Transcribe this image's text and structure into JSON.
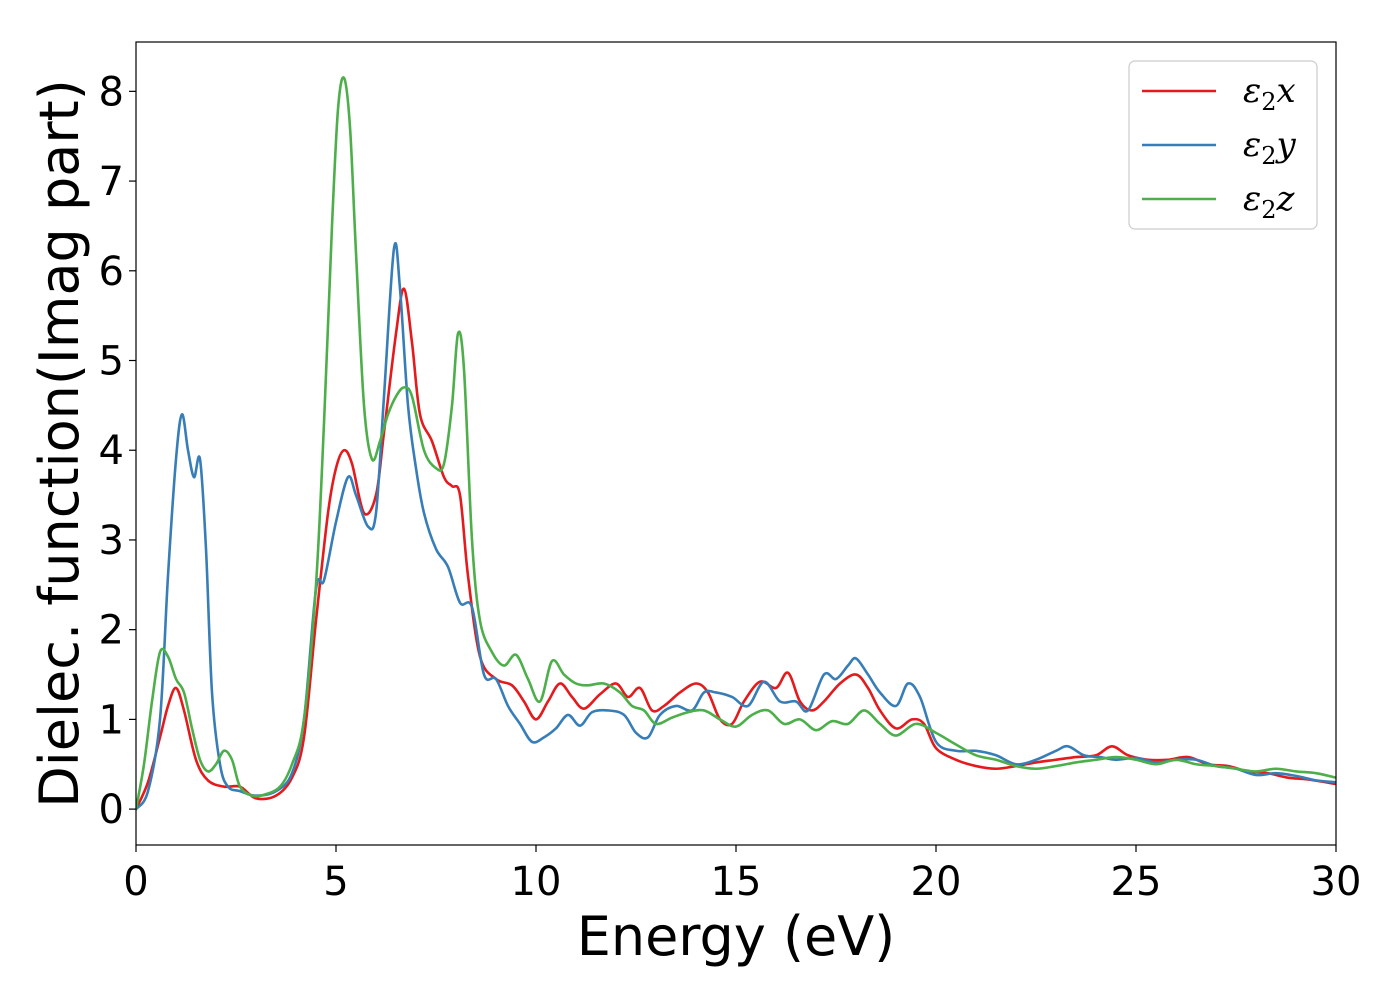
{
  "chart_data": {
    "type": "line",
    "xlabel": "Energy (eV)",
    "ylabel": "Dielec. function(Imag part)",
    "xlim": [
      0,
      30
    ],
    "ylim": [
      -0.4,
      8.55
    ],
    "xticks": [
      "0",
      "5",
      "10",
      "15",
      "20",
      "25",
      "30"
    ],
    "yticks": [
      "0",
      "1",
      "2",
      "3",
      "4",
      "5",
      "6",
      "7",
      "8"
    ],
    "grid": false,
    "legend_position": "top-right",
    "series": [
      {
        "name": "ε2x",
        "legend_base": "ε",
        "legend_sub": "2",
        "legend_tail": "x",
        "color": "#e41a1c",
        "x": [
          0,
          0.3,
          0.6,
          0.8,
          1.0,
          1.2,
          1.5,
          1.8,
          2.2,
          2.6,
          3.0,
          3.5,
          3.9,
          4.2,
          4.5,
          4.8,
          5.0,
          5.2,
          5.4,
          5.7,
          6.0,
          6.2,
          6.5,
          6.7,
          6.9,
          7.1,
          7.4,
          7.7,
          7.9,
          8.1,
          8.3,
          8.6,
          9.0,
          9.4,
          9.7,
          10.0,
          10.3,
          10.6,
          10.9,
          11.2,
          11.6,
          12.0,
          12.3,
          12.6,
          12.9,
          13.2,
          13.6,
          14.0,
          14.3,
          14.6,
          14.9,
          15.2,
          15.6,
          16.0,
          16.3,
          16.6,
          16.9,
          17.2,
          17.6,
          18.0,
          18.3,
          18.6,
          19.0,
          19.4,
          19.7,
          20.0,
          20.5,
          21.0,
          21.5,
          22.0,
          22.5,
          23.0,
          23.5,
          24.0,
          24.4,
          24.8,
          25.3,
          25.8,
          26.3,
          26.8,
          27.3,
          27.8,
          28.3,
          28.8,
          29.3,
          30.0
        ],
        "y": [
          0,
          0.3,
          0.8,
          1.15,
          1.35,
          1.1,
          0.55,
          0.32,
          0.25,
          0.25,
          0.12,
          0.15,
          0.35,
          0.8,
          2.1,
          3.3,
          3.8,
          4.0,
          3.85,
          3.3,
          3.5,
          4.2,
          5.3,
          5.8,
          5.2,
          4.4,
          4.1,
          3.7,
          3.6,
          3.5,
          2.6,
          1.7,
          1.45,
          1.38,
          1.2,
          1.0,
          1.2,
          1.4,
          1.25,
          1.12,
          1.28,
          1.4,
          1.25,
          1.35,
          1.1,
          1.15,
          1.3,
          1.4,
          1.3,
          1.0,
          0.95,
          1.2,
          1.42,
          1.35,
          1.52,
          1.2,
          1.1,
          1.2,
          1.4,
          1.5,
          1.35,
          1.1,
          0.9,
          1.0,
          0.95,
          0.68,
          0.55,
          0.48,
          0.45,
          0.48,
          0.52,
          0.55,
          0.58,
          0.6,
          0.7,
          0.6,
          0.55,
          0.55,
          0.58,
          0.5,
          0.48,
          0.42,
          0.4,
          0.35,
          0.33,
          0.28
        ]
      },
      {
        "name": "ε2y",
        "legend_base": "ε",
        "legend_sub": "2",
        "legend_tail": "y",
        "color": "#377eb8",
        "x": [
          0,
          0.3,
          0.6,
          0.8,
          1.0,
          1.15,
          1.3,
          1.45,
          1.6,
          1.75,
          1.9,
          2.1,
          2.3,
          2.6,
          3.0,
          3.5,
          3.9,
          4.2,
          4.5,
          4.7,
          5.0,
          5.3,
          5.5,
          5.8,
          6.0,
          6.2,
          6.45,
          6.6,
          6.8,
          7.0,
          7.2,
          7.5,
          7.8,
          8.1,
          8.4,
          8.7,
          9.0,
          9.3,
          9.6,
          9.9,
          10.2,
          10.5,
          10.8,
          11.1,
          11.4,
          11.8,
          12.2,
          12.5,
          12.8,
          13.1,
          13.5,
          13.9,
          14.2,
          14.5,
          14.9,
          15.3,
          15.7,
          16.1,
          16.5,
          16.8,
          17.2,
          17.5,
          17.8,
          18.0,
          18.3,
          18.6,
          19.0,
          19.3,
          19.6,
          20.0,
          20.5,
          21.0,
          21.5,
          22.0,
          22.5,
          23.0,
          23.3,
          23.7,
          24.1,
          24.5,
          25.0,
          25.5,
          26.0,
          26.5,
          27.0,
          27.5,
          28.0,
          28.5,
          29.0,
          29.5,
          30.0
        ],
        "y": [
          0,
          0.2,
          1.0,
          2.6,
          3.9,
          4.4,
          4.0,
          3.7,
          3.9,
          2.9,
          1.3,
          0.5,
          0.25,
          0.2,
          0.15,
          0.2,
          0.4,
          1.0,
          2.45,
          2.55,
          3.2,
          3.7,
          3.5,
          3.15,
          3.3,
          4.6,
          6.25,
          5.8,
          4.5,
          3.8,
          3.3,
          2.9,
          2.7,
          2.3,
          2.25,
          1.5,
          1.45,
          1.15,
          0.95,
          0.75,
          0.8,
          0.9,
          1.05,
          0.93,
          1.08,
          1.1,
          1.05,
          0.85,
          0.8,
          1.05,
          1.15,
          1.1,
          1.3,
          1.3,
          1.25,
          1.15,
          1.42,
          1.2,
          1.2,
          1.1,
          1.5,
          1.45,
          1.6,
          1.68,
          1.5,
          1.3,
          1.15,
          1.4,
          1.25,
          0.75,
          0.65,
          0.65,
          0.6,
          0.5,
          0.55,
          0.65,
          0.7,
          0.6,
          0.58,
          0.55,
          0.57,
          0.52,
          0.55,
          0.55,
          0.48,
          0.45,
          0.38,
          0.4,
          0.37,
          0.32,
          0.3
        ]
      },
      {
        "name": "ε2z",
        "legend_base": "ε",
        "legend_sub": "2",
        "legend_tail": "z",
        "color": "#4daf4a",
        "x": [
          0,
          0.2,
          0.4,
          0.6,
          0.8,
          1.0,
          1.2,
          1.4,
          1.6,
          1.8,
          2.0,
          2.2,
          2.4,
          2.6,
          2.9,
          3.2,
          3.6,
          3.9,
          4.2,
          4.5,
          4.7,
          4.9,
          5.05,
          5.2,
          5.35,
          5.5,
          5.7,
          5.9,
          6.1,
          6.3,
          6.5,
          6.7,
          6.9,
          7.2,
          7.5,
          7.7,
          7.9,
          8.05,
          8.2,
          8.4,
          8.6,
          8.9,
          9.2,
          9.5,
          9.8,
          10.1,
          10.4,
          10.7,
          11.0,
          11.3,
          11.7,
          12.1,
          12.4,
          12.7,
          13.0,
          13.4,
          13.8,
          14.2,
          14.6,
          15.0,
          15.4,
          15.8,
          16.2,
          16.6,
          17.0,
          17.4,
          17.8,
          18.2,
          18.6,
          19.0,
          19.5,
          20.0,
          20.5,
          21.0,
          21.5,
          22.0,
          22.5,
          23.0,
          23.5,
          24.0,
          24.5,
          25.0,
          25.5,
          26.0,
          26.5,
          27.0,
          27.5,
          28.0,
          28.5,
          29.0,
          29.5,
          30.0
        ],
        "y": [
          0,
          0.5,
          1.2,
          1.75,
          1.7,
          1.45,
          1.3,
          0.9,
          0.55,
          0.42,
          0.5,
          0.65,
          0.55,
          0.25,
          0.15,
          0.16,
          0.25,
          0.5,
          1.0,
          2.5,
          4.3,
          6.5,
          7.8,
          8.15,
          7.6,
          6.2,
          4.5,
          3.9,
          4.1,
          4.4,
          4.6,
          4.7,
          4.6,
          4.0,
          3.8,
          3.85,
          4.5,
          5.3,
          4.9,
          3.0,
          2.1,
          1.75,
          1.6,
          1.72,
          1.45,
          1.2,
          1.65,
          1.5,
          1.4,
          1.38,
          1.4,
          1.3,
          1.15,
          1.1,
          0.95,
          1.02,
          1.08,
          1.1,
          1.0,
          0.92,
          1.05,
          1.1,
          0.95,
          1.0,
          0.88,
          0.98,
          0.95,
          1.1,
          0.95,
          0.82,
          0.95,
          0.85,
          0.72,
          0.6,
          0.55,
          0.48,
          0.45,
          0.48,
          0.52,
          0.55,
          0.58,
          0.55,
          0.5,
          0.55,
          0.5,
          0.48,
          0.45,
          0.42,
          0.45,
          0.42,
          0.4,
          0.35
        ]
      }
    ]
  }
}
